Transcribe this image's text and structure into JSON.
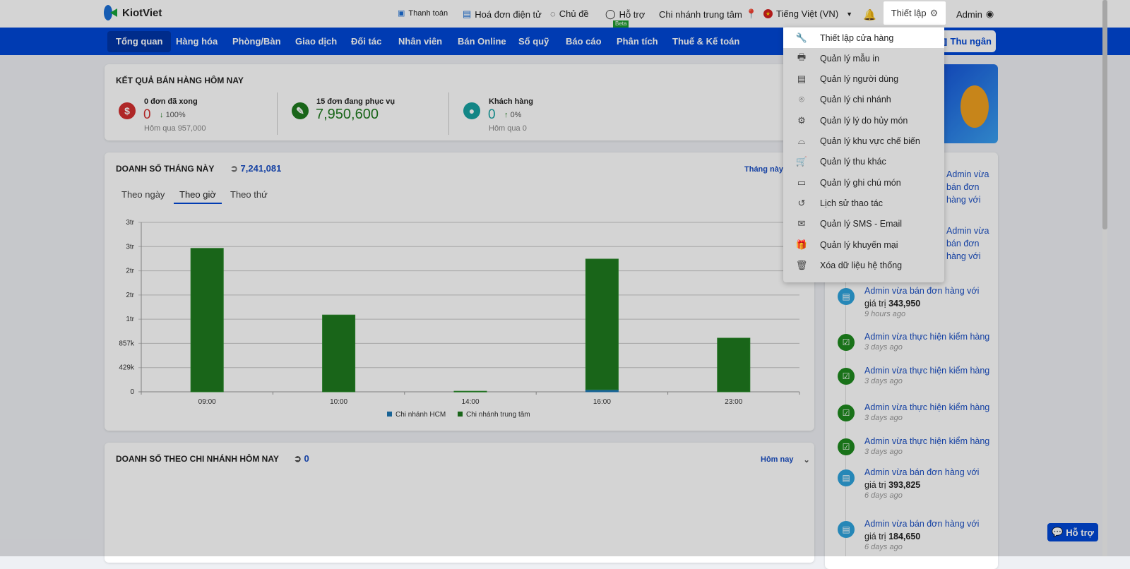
{
  "app": {
    "brand": "KiotViet"
  },
  "topbar": {
    "payment": "Thanh toán",
    "einvoice": "Hoá đơn điện tử",
    "theme": "Chủ đề",
    "support": "Hỗ trợ",
    "support_badge": "Beta",
    "branch": "Chi nhánh trung tâm",
    "language": "Tiếng Việt (VN)",
    "setup": "Thiết lập",
    "user": "Admin"
  },
  "nav": {
    "items": [
      "Tổng quan",
      "Hàng hóa",
      "Phòng/Bàn",
      "Giao dịch",
      "Đối tác",
      "Nhân viên",
      "Bán Online",
      "Sổ quỹ",
      "Báo cáo",
      "Phân tích",
      "Thuế & Kế toán"
    ],
    "cashier": "Thu ngân"
  },
  "today": {
    "title": "KẾT QUẢ BÁN HÀNG HÔM NAY",
    "done": {
      "label": "0 đơn đã xong",
      "value": "0",
      "change": "100%",
      "yesterday": "Hôm qua 957,000"
    },
    "serving": {
      "label": "15 đơn đang phục vụ",
      "value": "7,950,600"
    },
    "customers": {
      "label": "Khách hàng",
      "value": "0",
      "change": "0%",
      "yesterday": "Hôm qua 0"
    }
  },
  "month": {
    "title": "DOANH SỐ THÁNG NÀY",
    "total": "7,241,081",
    "period": "Tháng này",
    "tabs": [
      "Theo ngày",
      "Theo giờ",
      "Theo thứ"
    ]
  },
  "chart_data": {
    "type": "bar",
    "stacked": true,
    "categories": [
      "09:00",
      "10:00",
      "14:00",
      "16:00",
      "23:00"
    ],
    "series": [
      {
        "name": "Chi nhánh HCM",
        "color": "#1f77b4",
        "values": [
          0,
          0,
          0,
          40000,
          0
        ]
      },
      {
        "name": "Chi nhánh trung tâm",
        "color": "#1f7a1f",
        "values": [
          2540000,
          1360000,
          10000,
          2310000,
          950000
        ]
      }
    ],
    "yticks": [
      "0",
      "429k",
      "857k",
      "1tr",
      "2tr",
      "2tr",
      "3tr",
      "3tr"
    ],
    "ylim": [
      0,
      3000000
    ],
    "grid": true,
    "legend": "bottom"
  },
  "branch_today": {
    "title": "DOANH SỐ THEO CHI NHÁNH HÔM NAY",
    "total": "0",
    "period": "Hôm nay"
  },
  "activity": [
    {
      "pre": "Admin vừa",
      "action": "bán đơn hàng với",
      "type": "sale"
    },
    {
      "pre": "Admin vừa",
      "action": "bán đơn hàng với",
      "type": "sale"
    },
    {
      "pre": "Admin vừa",
      "action": "bán đơn hàng với",
      "mid": "giá trị",
      "value": "343,950",
      "time": "9 hours ago",
      "type": "sale"
    },
    {
      "pre": "Admin vừa",
      "action": "thực hiện kiểm hàng",
      "time": "3 days ago",
      "type": "check"
    },
    {
      "pre": "Admin vừa",
      "action": "thực hiện kiểm hàng",
      "time": "3 days ago",
      "type": "check"
    },
    {
      "pre": "Admin vừa",
      "action": "thực hiện kiểm hàng",
      "time": "3 days ago",
      "type": "check"
    },
    {
      "pre": "Admin vừa",
      "action": "thực hiện kiểm hàng",
      "time": "3 days ago",
      "type": "check"
    },
    {
      "pre": "Admin vừa",
      "action": "bán đơn hàng với",
      "mid": "giá trị",
      "value": "393,825",
      "time": "6 days ago",
      "type": "sale"
    },
    {
      "pre": "Admin vừa",
      "action": "bán đơn hàng với",
      "mid": "giá trị",
      "value": "184,650",
      "time": "6 days ago",
      "type": "sale"
    }
  ],
  "menu": {
    "items": [
      {
        "label": "Thiết lập cửa hàng",
        "icon": "wrench-icon",
        "glyph": "🔧"
      },
      {
        "label": "Quản lý mẫu in",
        "icon": "printer-icon",
        "glyph": "🖶"
      },
      {
        "label": "Quản lý người dùng",
        "icon": "user-file-icon",
        "glyph": "▤"
      },
      {
        "label": "Quản lý chi nhánh",
        "icon": "location-icon",
        "glyph": "⌾"
      },
      {
        "label": "Quản lý lý do hủy món",
        "icon": "user-gear-icon",
        "glyph": "⚙"
      },
      {
        "label": "Quản lý khu vực chế biến",
        "icon": "mortar-icon",
        "glyph": "⌓"
      },
      {
        "label": "Quản lý thu khác",
        "icon": "cart-icon",
        "glyph": "🛒"
      },
      {
        "label": "Quản lý ghi chú món",
        "icon": "note-icon",
        "glyph": "▭"
      },
      {
        "label": "Lịch sử thao tác",
        "icon": "history-icon",
        "glyph": "↺"
      },
      {
        "label": "Quản lý SMS - Email",
        "icon": "mail-icon",
        "glyph": "✉"
      },
      {
        "label": "Quản lý khuyến mại",
        "icon": "gift-icon",
        "glyph": "🎁"
      },
      {
        "label": "Xóa dữ liệu hệ thống",
        "icon": "trash-icon",
        "glyph": "🗑"
      }
    ]
  },
  "help_button": "Hỗ trợ"
}
